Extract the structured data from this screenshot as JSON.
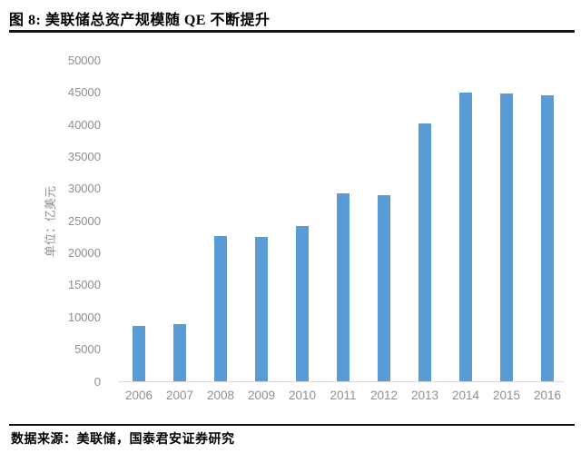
{
  "header": {
    "title": "图 8:  美联储总资产规模随 QE 不断提升"
  },
  "footer": {
    "source": "数据来源：美联储，国泰君安证券研究"
  },
  "chart_data": {
    "type": "bar",
    "title": "美联储总资产规模随 QE 不断提升",
    "categories": [
      "2006",
      "2007",
      "2008",
      "2009",
      "2010",
      "2011",
      "2012",
      "2013",
      "2014",
      "2015",
      "2016"
    ],
    "values": [
      8700,
      9000,
      22700,
      22500,
      24300,
      29300,
      29000,
      40300,
      45000,
      44900,
      44600
    ],
    "xlabel": "",
    "ylabel": "单位：亿美元",
    "ylim": [
      0,
      50000
    ],
    "ytick_step": 5000,
    "grid": false,
    "legend": false,
    "bar_color": "#5B9BD5",
    "axis_text_color": "#8f8f8f",
    "axis_line_color": "#d9d9d9"
  }
}
